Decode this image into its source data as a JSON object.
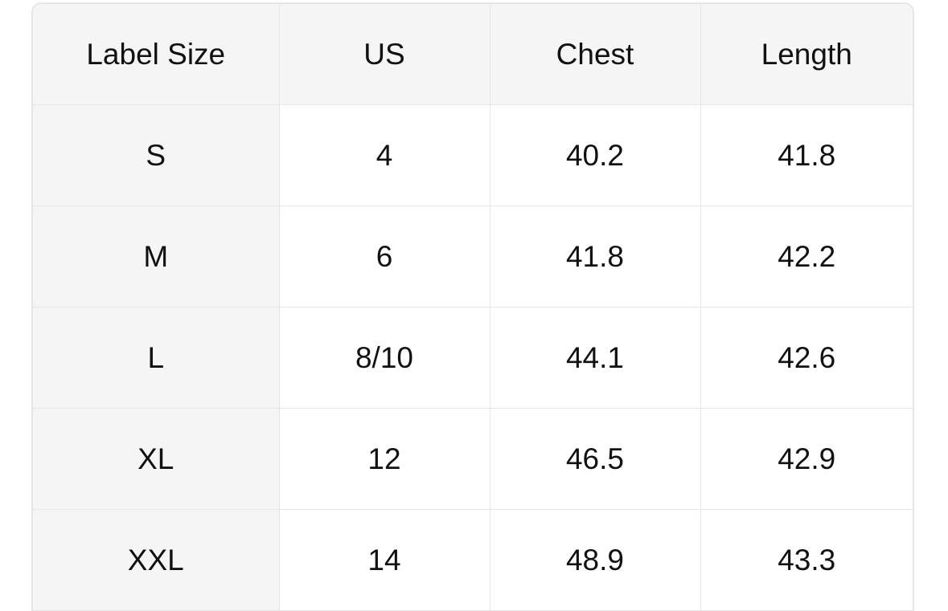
{
  "table": {
    "headers": [
      "Label Size",
      "US",
      "Chest",
      "Length"
    ],
    "rows": [
      [
        "S",
        "4",
        "40.2",
        "41.8"
      ],
      [
        "M",
        "6",
        "41.8",
        "42.2"
      ],
      [
        "L",
        "8/10",
        "44.1",
        "42.6"
      ],
      [
        "XL",
        "12",
        "46.5",
        "42.9"
      ],
      [
        "XXL",
        "14",
        "48.9",
        "43.3"
      ]
    ]
  }
}
